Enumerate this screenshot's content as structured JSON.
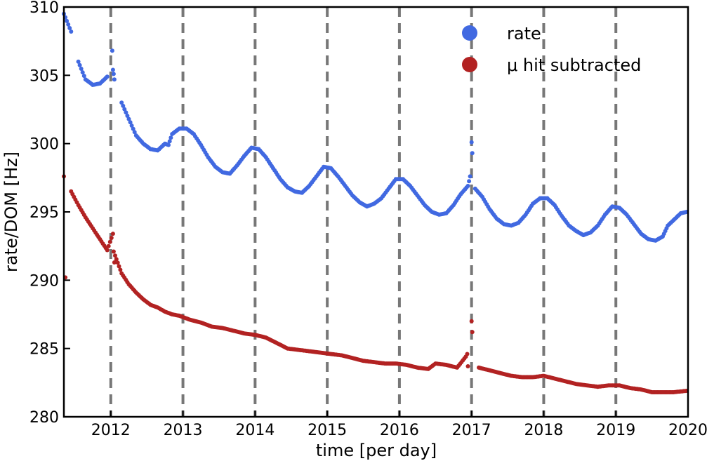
{
  "chart_data": {
    "type": "scatter",
    "title": "",
    "xlabel": "time [per day]",
    "ylabel": "rate/DOM [Hz]",
    "xlim": [
      2011.35,
      2020.0
    ],
    "ylim": [
      280,
      310
    ],
    "xticks": [
      2012,
      2013,
      2014,
      2015,
      2016,
      2017,
      2018,
      2019,
      2020
    ],
    "yticks": [
      280,
      285,
      290,
      295,
      300,
      305,
      310
    ],
    "vlines": [
      2012,
      2013,
      2014,
      2015,
      2016,
      2017,
      2018,
      2019
    ],
    "grid": false,
    "legend_position": "top-right",
    "series": [
      {
        "name": "rate",
        "color": "#4169e1",
        "points": [
          [
            2011.35,
            309.5
          ],
          [
            2011.45,
            308.2
          ],
          [
            2011.55,
            306.0
          ],
          [
            2011.65,
            304.7
          ],
          [
            2011.75,
            304.3
          ],
          [
            2011.85,
            304.4
          ],
          [
            2011.95,
            304.9
          ],
          [
            2012.05,
            304.7
          ],
          [
            2012.15,
            303.0
          ],
          [
            2012.25,
            301.8
          ],
          [
            2012.35,
            300.6
          ],
          [
            2012.45,
            300.0
          ],
          [
            2012.55,
            299.6
          ],
          [
            2012.65,
            299.5
          ],
          [
            2012.75,
            300.0
          ],
          [
            2012.85,
            300.7
          ],
          [
            2012.95,
            301.1
          ],
          [
            2013.05,
            301.1
          ],
          [
            2013.15,
            300.7
          ],
          [
            2013.25,
            299.9
          ],
          [
            2013.35,
            299.0
          ],
          [
            2013.45,
            298.3
          ],
          [
            2013.55,
            297.9
          ],
          [
            2013.65,
            297.8
          ],
          [
            2013.75,
            298.4
          ],
          [
            2013.85,
            299.1
          ],
          [
            2013.95,
            299.7
          ],
          [
            2014.05,
            299.6
          ],
          [
            2014.15,
            299.0
          ],
          [
            2014.25,
            298.2
          ],
          [
            2014.35,
            297.4
          ],
          [
            2014.45,
            296.8
          ],
          [
            2014.55,
            296.5
          ],
          [
            2014.65,
            296.4
          ],
          [
            2014.75,
            296.9
          ],
          [
            2014.85,
            297.6
          ],
          [
            2014.95,
            298.3
          ],
          [
            2015.05,
            298.2
          ],
          [
            2015.15,
            297.6
          ],
          [
            2015.25,
            296.9
          ],
          [
            2015.35,
            296.2
          ],
          [
            2015.45,
            295.7
          ],
          [
            2015.55,
            295.4
          ],
          [
            2015.65,
            295.6
          ],
          [
            2015.75,
            296.0
          ],
          [
            2015.85,
            296.7
          ],
          [
            2015.95,
            297.4
          ],
          [
            2016.05,
            297.4
          ],
          [
            2016.15,
            296.9
          ],
          [
            2016.25,
            296.2
          ],
          [
            2016.35,
            295.5
          ],
          [
            2016.45,
            295.0
          ],
          [
            2016.55,
            294.8
          ],
          [
            2016.65,
            294.9
          ],
          [
            2016.75,
            295.5
          ],
          [
            2016.85,
            296.3
          ],
          [
            2016.95,
            296.9
          ],
          [
            2017.05,
            296.7
          ],
          [
            2017.15,
            296.1
          ],
          [
            2017.25,
            295.2
          ],
          [
            2017.35,
            294.5
          ],
          [
            2017.45,
            294.1
          ],
          [
            2017.55,
            294.0
          ],
          [
            2017.65,
            294.2
          ],
          [
            2017.75,
            294.8
          ],
          [
            2017.85,
            295.6
          ],
          [
            2017.95,
            296.0
          ],
          [
            2018.05,
            296.0
          ],
          [
            2018.15,
            295.5
          ],
          [
            2018.25,
            294.7
          ],
          [
            2018.35,
            294.0
          ],
          [
            2018.45,
            293.6
          ],
          [
            2018.55,
            293.3
          ],
          [
            2018.65,
            293.5
          ],
          [
            2018.75,
            294.0
          ],
          [
            2018.85,
            294.8
          ],
          [
            2018.95,
            295.4
          ],
          [
            2019.05,
            295.3
          ],
          [
            2019.15,
            294.8
          ],
          [
            2019.25,
            294.1
          ],
          [
            2019.35,
            293.4
          ],
          [
            2019.45,
            293.0
          ],
          [
            2019.55,
            292.9
          ],
          [
            2019.65,
            293.2
          ],
          [
            2019.72,
            294.0
          ],
          [
            2019.8,
            294.4
          ],
          [
            2019.9,
            294.9
          ],
          [
            2019.98,
            295.0
          ],
          [
            2012.02,
            306.8
          ],
          [
            2012.03,
            305.4
          ],
          [
            2012.04,
            305.1
          ],
          [
            2016.98,
            297.6
          ],
          [
            2017.0,
            300.1
          ],
          [
            2017.01,
            299.3
          ],
          [
            2012.8,
            299.9
          ]
        ]
      },
      {
        "name": "μ hit subtracted",
        "color": "#b22222",
        "points": [
          [
            2011.35,
            297.6
          ],
          [
            2011.45,
            296.5
          ],
          [
            2011.55,
            295.5
          ],
          [
            2011.65,
            294.6
          ],
          [
            2011.75,
            293.8
          ],
          [
            2011.85,
            293.0
          ],
          [
            2011.95,
            292.2
          ],
          [
            2012.05,
            291.3
          ],
          [
            2012.15,
            290.5
          ],
          [
            2012.25,
            289.7
          ],
          [
            2012.35,
            289.1
          ],
          [
            2012.45,
            288.6
          ],
          [
            2012.55,
            288.2
          ],
          [
            2012.65,
            288.0
          ],
          [
            2012.75,
            287.7
          ],
          [
            2012.85,
            287.5
          ],
          [
            2012.95,
            287.4
          ],
          [
            2013.1,
            287.1
          ],
          [
            2013.25,
            286.9
          ],
          [
            2013.4,
            286.6
          ],
          [
            2013.55,
            286.5
          ],
          [
            2013.7,
            286.3
          ],
          [
            2013.85,
            286.1
          ],
          [
            2014.0,
            286.0
          ],
          [
            2014.15,
            285.8
          ],
          [
            2014.3,
            285.4
          ],
          [
            2014.45,
            285.0
          ],
          [
            2014.6,
            284.9
          ],
          [
            2014.75,
            284.8
          ],
          [
            2014.9,
            284.7
          ],
          [
            2015.05,
            284.6
          ],
          [
            2015.2,
            284.5
          ],
          [
            2015.35,
            284.3
          ],
          [
            2015.5,
            284.1
          ],
          [
            2015.65,
            284.0
          ],
          [
            2015.8,
            283.9
          ],
          [
            2015.95,
            283.9
          ],
          [
            2016.1,
            283.8
          ],
          [
            2016.25,
            283.6
          ],
          [
            2016.4,
            283.5
          ],
          [
            2016.5,
            283.9
          ],
          [
            2016.65,
            283.8
          ],
          [
            2016.8,
            283.6
          ],
          [
            2016.95,
            283.7
          ],
          [
            2017.1,
            283.6
          ],
          [
            2017.25,
            283.4
          ],
          [
            2017.4,
            283.2
          ],
          [
            2017.55,
            283.0
          ],
          [
            2017.7,
            282.9
          ],
          [
            2017.85,
            282.9
          ],
          [
            2018.0,
            283.0
          ],
          [
            2018.15,
            282.8
          ],
          [
            2018.3,
            282.6
          ],
          [
            2018.45,
            282.4
          ],
          [
            2018.6,
            282.3
          ],
          [
            2018.75,
            282.2
          ],
          [
            2018.9,
            282.3
          ],
          [
            2019.05,
            282.3
          ],
          [
            2019.2,
            282.1
          ],
          [
            2019.35,
            282.0
          ],
          [
            2019.5,
            281.8
          ],
          [
            2019.65,
            281.8
          ],
          [
            2019.8,
            281.8
          ],
          [
            2019.98,
            281.9
          ],
          [
            2011.37,
            290.2
          ],
          [
            2012.03,
            293.4
          ],
          [
            2012.04,
            292.1
          ],
          [
            2012.06,
            291.8
          ],
          [
            2017.0,
            287.0
          ],
          [
            2017.01,
            286.2
          ],
          [
            2016.94,
            284.6
          ],
          [
            2016.92,
            284.4
          ]
        ]
      }
    ]
  }
}
